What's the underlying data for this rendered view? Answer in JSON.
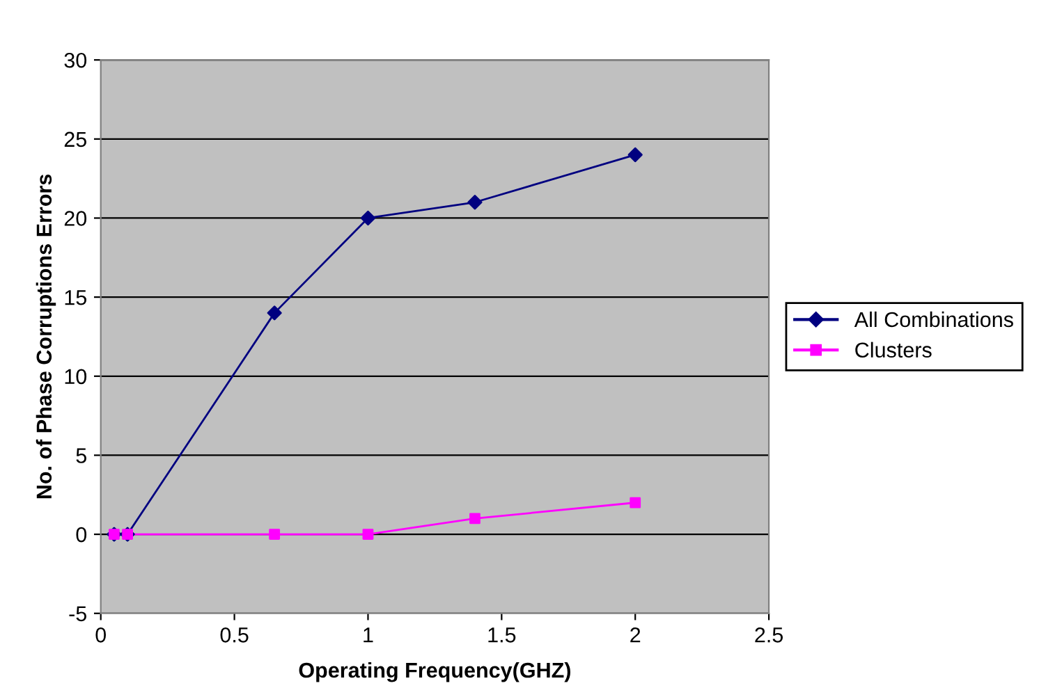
{
  "chart_data": {
    "type": "line",
    "xlabel": "Operating Frequency(GHZ)",
    "ylabel": "No. of Phase Corruptions Errors",
    "series": [
      {
        "name": "All Combinations",
        "color": "#000080",
        "marker": "diamond",
        "x": [
          0.05,
          0.1,
          0.65,
          1,
          1.4,
          2
        ],
        "values": [
          0,
          0,
          14,
          20,
          21,
          24
        ]
      },
      {
        "name": "Clusters",
        "color": "#ff00ff",
        "marker": "square",
        "x": [
          0.05,
          0.1,
          0.65,
          1,
          1.4,
          2
        ],
        "values": [
          0,
          0,
          0,
          0,
          1,
          2
        ]
      }
    ],
    "xlim": [
      0,
      2.5
    ],
    "xticks": [
      0,
      0.5,
      1,
      1.5,
      2,
      2.5
    ],
    "ylim": [
      -5,
      30
    ],
    "yticks": [
      -5,
      0,
      5,
      10,
      15,
      20,
      25,
      30
    ],
    "grid": "y",
    "legend": "right",
    "line_style": "solid"
  }
}
